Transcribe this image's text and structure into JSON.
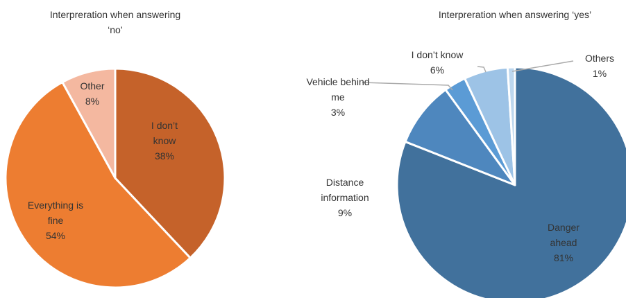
{
  "chart_data": [
    {
      "type": "pie",
      "title": "Interpreration when answering ‘no’",
      "categories": [
        "I don’t know",
        "Everything is fine",
        "Other"
      ],
      "values": [
        38,
        54,
        8
      ],
      "value_labels": [
        "38%",
        "54%",
        "8%"
      ],
      "colors": [
        "#c5622a",
        "#ed7d31",
        "#f4b8a0"
      ]
    },
    {
      "type": "pie",
      "title": "Interpreration when answering ‘yes’",
      "categories": [
        "Danger ahead",
        "Distance information",
        "Vehicle behind me",
        "I don’t know",
        "Others"
      ],
      "values": [
        81,
        9,
        3,
        6,
        1
      ],
      "value_labels": [
        "81%",
        "9%",
        "3%",
        "6%",
        "1%"
      ],
      "colors": [
        "#41719c",
        "#4e87be",
        "#5b9bd5",
        "#9dc3e6",
        "#bdd7ee"
      ]
    }
  ]
}
